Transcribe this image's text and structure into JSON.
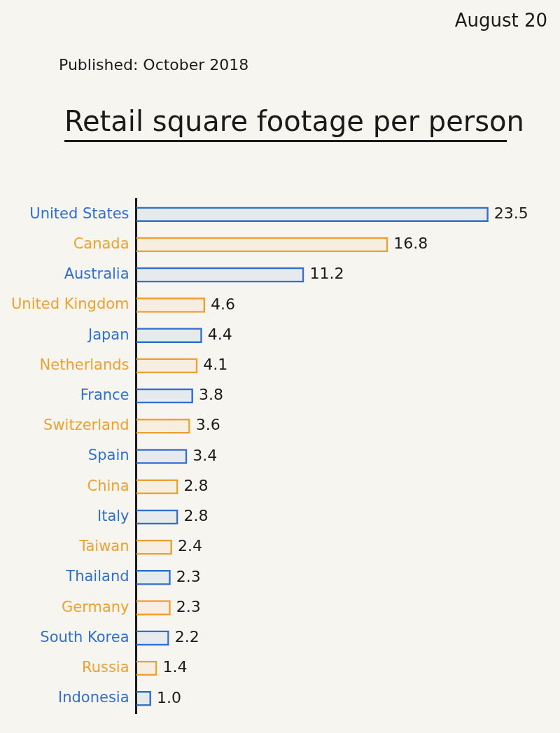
{
  "chart_data": {
    "type": "bar",
    "orientation": "horizontal",
    "title": "Retail square footage per person",
    "annotations": [
      "Published: October 2018",
      "August 20"
    ],
    "categories": [
      "United States",
      "Canada",
      "Australia",
      "United Kingdom",
      "Japan",
      "Netherlands",
      "France",
      "Switzerland",
      "Spain",
      "China",
      "Italy",
      "Taiwan",
      "Thailand",
      "Germany",
      "South Korea",
      "Russia",
      "Indonesia"
    ],
    "values": [
      23.5,
      16.8,
      11.2,
      4.6,
      4.4,
      4.1,
      3.8,
      3.6,
      3.4,
      2.8,
      2.8,
      2.4,
      2.3,
      2.3,
      2.2,
      1.4,
      1.0
    ],
    "colors": [
      "#2f6fcf",
      "#f0a030",
      "#2f6fcf",
      "#f0a030",
      "#2f6fcf",
      "#f0a030",
      "#2f6fcf",
      "#f0a030",
      "#2f6fcf",
      "#f0a030",
      "#2f6fcf",
      "#f0a030",
      "#2f6fcf",
      "#f0a030",
      "#2f6fcf",
      "#f0a030",
      "#2f6fcf"
    ],
    "value_labels": [
      "23.5",
      "16.8",
      "11.2",
      "4.6",
      "4.4",
      "4.1",
      "3.8",
      "3.6",
      "3.4",
      "2.8",
      "2.8",
      "2.4",
      "2.3",
      "2.3",
      "2.2",
      "1.4",
      "1.0"
    ],
    "grid": false,
    "tick_labels": "y"
  }
}
